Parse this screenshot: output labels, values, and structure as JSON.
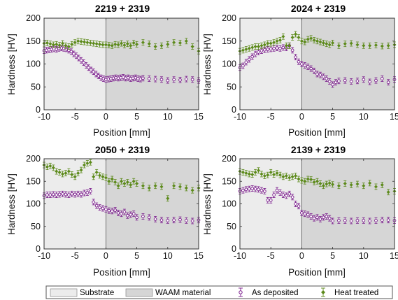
{
  "colors": {
    "substrate": "#ececec",
    "waam": "#d6d6d6",
    "as_deposited": "#7a1a8c",
    "heat_treated": "#5c8a1a",
    "axis": "#333333"
  },
  "legend": {
    "substrate": "Substrate",
    "waam": "WAAM material",
    "as_deposited": "As deposited",
    "heat_treated": "Heat treated"
  },
  "chart_data": [
    {
      "type": "scatter",
      "title": "2219 + 2319",
      "xlabel": "Position [mm]",
      "ylabel": "Hardness [HV]",
      "xlim": [
        -10,
        15
      ],
      "ylim": [
        0,
        200
      ],
      "xticks": [
        -10,
        -5,
        0,
        5,
        10,
        15
      ],
      "yticks": [
        0,
        50,
        100,
        150,
        200
      ],
      "regions": [
        {
          "name": "Substrate",
          "x": [
            -10,
            0
          ]
        },
        {
          "name": "WAAM material",
          "x": [
            0,
            15
          ]
        }
      ],
      "series": [
        {
          "name": "As deposited",
          "marker": "circle",
          "x": [
            -10,
            -9.6,
            -9.2,
            -8.8,
            -8.4,
            -8,
            -7.6,
            -7.2,
            -6.8,
            -6.4,
            -6,
            -5.6,
            -5.2,
            -4.8,
            -4.4,
            -4,
            -3.6,
            -3.2,
            -2.8,
            -2.4,
            -2,
            -1.6,
            -1.2,
            -0.8,
            -0.4,
            0,
            0.4,
            0.8,
            1.2,
            1.6,
            2,
            2.4,
            2.8,
            3.2,
            3.6,
            4,
            4.4,
            4.8,
            5.2,
            5.6,
            6,
            7,
            8,
            9,
            10,
            11,
            12,
            13,
            14,
            15
          ],
          "y": [
            129,
            130,
            131,
            132,
            133,
            132,
            134,
            135,
            134,
            133,
            130,
            127,
            122,
            118,
            113,
            108,
            103,
            97,
            92,
            87,
            83,
            78,
            74,
            70,
            68,
            66,
            67,
            68,
            69,
            70,
            69,
            70,
            71,
            69,
            70,
            68,
            69,
            70,
            68,
            67,
            69,
            68,
            67,
            66,
            64,
            66,
            65,
            67,
            66,
            64
          ]
        },
        {
          "name": "Heat treated",
          "marker": "diamond",
          "x": [
            -10,
            -9.5,
            -9,
            -8.5,
            -8,
            -7.5,
            -7,
            -6.5,
            -6,
            -5.5,
            -5,
            -4.5,
            -4,
            -3.5,
            -3,
            -2.5,
            -2,
            -1.5,
            -1,
            -0.5,
            0,
            0.5,
            1,
            1.5,
            2,
            2.5,
            3,
            3.5,
            4,
            4.5,
            5,
            6,
            7,
            8,
            9,
            10,
            11,
            12,
            13,
            14,
            15
          ],
          "y": [
            145,
            146,
            144,
            142,
            143,
            141,
            145,
            140,
            138,
            143,
            147,
            150,
            149,
            148,
            147,
            146,
            145,
            144,
            143,
            142,
            142,
            141,
            140,
            143,
            142,
            145,
            141,
            144,
            140,
            146,
            143,
            147,
            144,
            138,
            140,
            143,
            147,
            146,
            150,
            138,
            128
          ]
        }
      ]
    },
    {
      "type": "scatter",
      "title": "2024 + 2319",
      "xlabel": "Position [mm]",
      "ylabel": "Hardness [HV]",
      "xlim": [
        -10,
        15
      ],
      "ylim": [
        0,
        200
      ],
      "xticks": [
        -10,
        -5,
        0,
        5,
        10,
        15
      ],
      "yticks": [
        0,
        50,
        100,
        150,
        200
      ],
      "regions": [
        {
          "name": "Substrate",
          "x": [
            -10,
            0
          ]
        },
        {
          "name": "WAAM material",
          "x": [
            0,
            15
          ]
        }
      ],
      "series": [
        {
          "name": "As deposited",
          "marker": "circle",
          "x": [
            -10,
            -9.5,
            -9,
            -8.5,
            -8,
            -7.5,
            -7,
            -6.5,
            -6,
            -5.5,
            -5,
            -4.5,
            -4,
            -3.5,
            -3,
            -2.5,
            -2,
            -1.5,
            -1,
            -0.5,
            0,
            0.5,
            1,
            1.5,
            2,
            2.5,
            3,
            3.5,
            4,
            4.5,
            5,
            5.5,
            6,
            7,
            8,
            9,
            10,
            11,
            12,
            13,
            14,
            15
          ],
          "y": [
            92,
            96,
            104,
            110,
            116,
            122,
            126,
            129,
            131,
            132,
            133,
            134,
            135,
            134,
            136,
            135,
            140,
            130,
            115,
            105,
            100,
            97,
            94,
            90,
            85,
            78,
            76,
            72,
            68,
            62,
            55,
            60,
            63,
            64,
            62,
            63,
            66,
            61,
            64,
            68,
            60,
            66
          ]
        },
        {
          "name": "Heat treated",
          "marker": "diamond",
          "x": [
            -10,
            -9.5,
            -9,
            -8.5,
            -8,
            -7.5,
            -7,
            -6.5,
            -6,
            -5.5,
            -5,
            -4.5,
            -4,
            -3.5,
            -3,
            -2.5,
            -2,
            -1.5,
            -1,
            -0.5,
            0,
            0.5,
            1,
            1.5,
            2,
            2.5,
            3,
            3.5,
            4,
            4.5,
            5,
            6,
            7,
            8,
            9,
            10,
            11,
            12,
            13,
            14,
            15
          ],
          "y": [
            128,
            130,
            132,
            134,
            136,
            138,
            138,
            140,
            142,
            145,
            145,
            147,
            150,
            152,
            160,
            140,
            140,
            158,
            165,
            158,
            150,
            148,
            154,
            156,
            152,
            150,
            148,
            146,
            144,
            142,
            146,
            140,
            144,
            145,
            142,
            140,
            140,
            141,
            139,
            140,
            142
          ]
        }
      ]
    },
    {
      "type": "scatter",
      "title": "2050 + 2319",
      "xlabel": "Position [mm]",
      "ylabel": "Hardness [HV]",
      "xlim": [
        -10,
        15
      ],
      "ylim": [
        0,
        200
      ],
      "xticks": [
        -10,
        -5,
        0,
        5,
        10,
        15
      ],
      "yticks": [
        0,
        50,
        100,
        150,
        200
      ],
      "regions": [
        {
          "name": "Substrate",
          "x": [
            -10,
            0
          ]
        },
        {
          "name": "WAAM material",
          "x": [
            0,
            15
          ]
        }
      ],
      "series": [
        {
          "name": "As deposited",
          "marker": "circle",
          "x": [
            -10,
            -9.5,
            -9,
            -8.5,
            -8,
            -7.5,
            -7,
            -6.5,
            -6,
            -5.5,
            -5,
            -4.5,
            -4,
            -3.5,
            -3,
            -2.5,
            -2,
            -1.5,
            -1,
            -0.5,
            0,
            0.5,
            1,
            1.5,
            2,
            2.5,
            3,
            3.5,
            4,
            4.5,
            5,
            6,
            7,
            8,
            9,
            10,
            11,
            12,
            13,
            14,
            15
          ],
          "y": [
            118,
            120,
            120,
            121,
            120,
            121,
            122,
            121,
            120,
            122,
            121,
            122,
            121,
            124,
            125,
            128,
            104,
            96,
            92,
            90,
            88,
            85,
            84,
            86,
            80,
            78,
            82,
            74,
            76,
            78,
            70,
            72,
            70,
            66,
            64,
            63,
            64,
            65,
            63,
            62,
            64
          ]
        },
        {
          "name": "Heat treated",
          "marker": "diamond",
          "x": [
            -10,
            -9.5,
            -9,
            -8.5,
            -8,
            -7.5,
            -7,
            -6.5,
            -6,
            -5.5,
            -5,
            -4.5,
            -4,
            -3.5,
            -3,
            -2.5,
            -2,
            -1.5,
            -1,
            -0.5,
            0,
            0.5,
            1,
            1.5,
            2,
            2.5,
            3,
            3.5,
            4,
            4.5,
            5,
            6,
            7,
            8,
            9,
            10,
            11,
            12,
            13,
            14,
            15
          ],
          "y": [
            186,
            182,
            184,
            180,
            172,
            170,
            166,
            168,
            172,
            165,
            160,
            168,
            175,
            186,
            190,
            192,
            160,
            170,
            163,
            160,
            158,
            150,
            155,
            148,
            140,
            150,
            145,
            148,
            142,
            150,
            145,
            140,
            135,
            140,
            138,
            112,
            140,
            138,
            135,
            130,
            135
          ]
        }
      ]
    },
    {
      "type": "scatter",
      "title": "2139 + 2319",
      "xlabel": "Position [mm]",
      "ylabel": "Hardness [HV]",
      "xlim": [
        -10,
        15
      ],
      "ylim": [
        0,
        200
      ],
      "xticks": [
        -10,
        -5,
        0,
        5,
        10,
        15
      ],
      "yticks": [
        0,
        50,
        100,
        150,
        200
      ],
      "regions": [
        {
          "name": "Substrate",
          "x": [
            -10,
            0
          ]
        },
        {
          "name": "WAAM material",
          "x": [
            0,
            15
          ]
        }
      ],
      "series": [
        {
          "name": "As deposited",
          "marker": "circle",
          "x": [
            -10,
            -9.5,
            -9,
            -8.5,
            -8,
            -7.5,
            -7,
            -6.5,
            -6,
            -5.5,
            -5,
            -4.5,
            -4,
            -3.5,
            -3,
            -2.5,
            -2,
            -1.5,
            -1,
            -0.5,
            0,
            0.5,
            1,
            1.5,
            2,
            2.5,
            3,
            3.5,
            4,
            4.5,
            5,
            6,
            7,
            8,
            9,
            10,
            11,
            12,
            13,
            14,
            15
          ],
          "y": [
            128,
            130,
            132,
            133,
            134,
            133,
            132,
            130,
            128,
            108,
            108,
            120,
            130,
            125,
            120,
            118,
            122,
            115,
            100,
            95,
            80,
            78,
            76,
            72,
            68,
            70,
            66,
            70,
            72,
            68,
            62,
            63,
            63,
            62,
            63,
            63,
            62,
            63,
            64,
            64,
            63
          ]
        },
        {
          "name": "Heat treated",
          "marker": "diamond",
          "x": [
            -10,
            -9.5,
            -9,
            -8.5,
            -8,
            -7.5,
            -7,
            -6.5,
            -6,
            -5.5,
            -5,
            -4.5,
            -4,
            -3.5,
            -3,
            -2.5,
            -2,
            -1.5,
            -1,
            -0.5,
            0,
            0.5,
            1,
            1.5,
            2,
            2.5,
            3,
            3.5,
            4,
            4.5,
            5,
            6,
            7,
            8,
            9,
            10,
            11,
            12,
            13,
            14,
            15
          ],
          "y": [
            172,
            170,
            168,
            166,
            165,
            170,
            174,
            166,
            162,
            164,
            170,
            165,
            168,
            164,
            160,
            162,
            158,
            160,
            162,
            155,
            152,
            150,
            155,
            154,
            148,
            150,
            145,
            140,
            144,
            146,
            143,
            140,
            145,
            142,
            144,
            140,
            146,
            138,
            142,
            126,
            128
          ]
        }
      ]
    }
  ]
}
